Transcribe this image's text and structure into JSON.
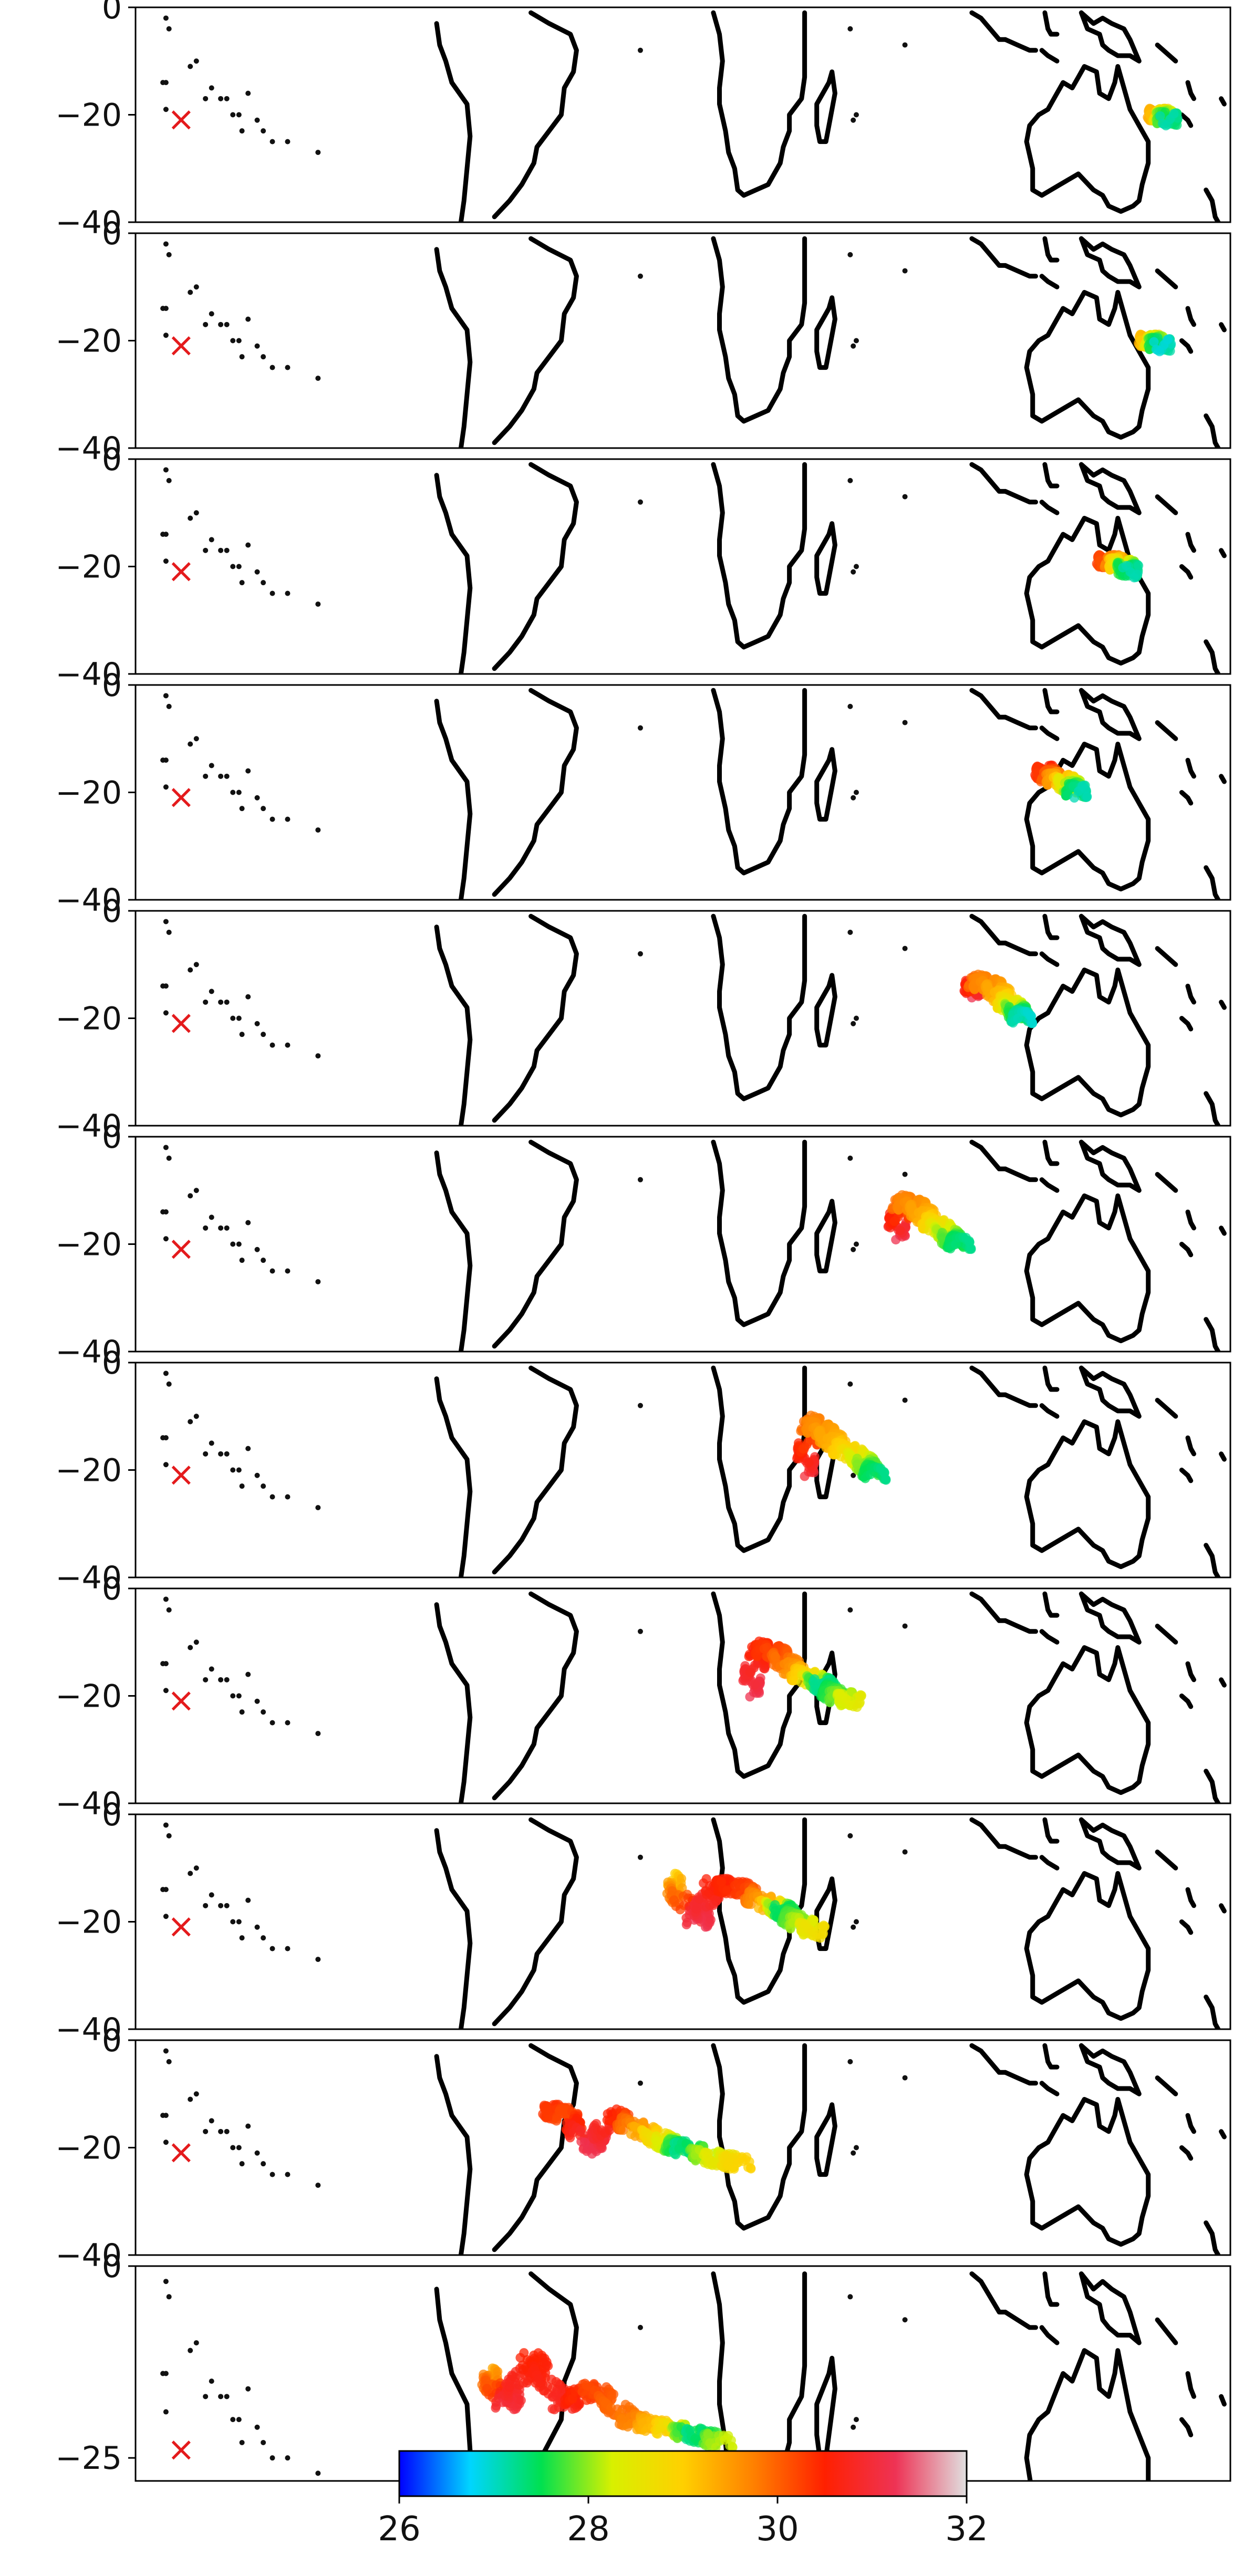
{
  "figure": {
    "description_free": true
  },
  "chart_data": {
    "type": "scatter",
    "grid": false,
    "legend": "none",
    "xlabel": "",
    "ylabel": "",
    "title": "",
    "panels": [
      {
        "ylim": [
          -40,
          0
        ],
        "yticks": [
          "0",
          "-20",
          "-40"
        ],
        "marker": {
          "label": "×",
          "lon": -165,
          "lat": -21
        },
        "plume": [
          [
            155,
            -20,
            29.8
          ],
          [
            158,
            -20,
            28.5
          ],
          [
            160,
            -21,
            27.0
          ]
        ]
      },
      {
        "ylim": [
          -40,
          0
        ],
        "yticks": [
          "0",
          "-20",
          "-40"
        ],
        "marker": {
          "label": "×",
          "lon": -165,
          "lat": -21
        },
        "plume": [
          [
            152,
            -20,
            29.8
          ],
          [
            155,
            -20,
            28.3
          ],
          [
            158,
            -21,
            26.8
          ]
        ]
      },
      {
        "ylim": [
          -40,
          0
        ],
        "yticks": [
          "0",
          "-20",
          "-40"
        ],
        "marker": {
          "label": "×",
          "lon": -165,
          "lat": -21
        },
        "plume": [
          [
            138,
            -19,
            30.6
          ],
          [
            142,
            -19,
            29.6
          ],
          [
            145,
            -20,
            28.2
          ],
          [
            147,
            -21,
            27.0
          ]
        ]
      },
      {
        "ylim": [
          -40,
          0
        ],
        "yticks": [
          "0",
          "-20",
          "-40"
        ],
        "marker": {
          "label": "×",
          "lon": -165,
          "lat": -21
        },
        "plume": [
          [
            118,
            -16,
            30.6
          ],
          [
            121,
            -17,
            30.0
          ],
          [
            125,
            -18,
            29.0
          ],
          [
            128,
            -19,
            28.0
          ],
          [
            130,
            -20,
            27.0
          ]
        ]
      },
      {
        "ylim": [
          -40,
          0
        ],
        "yticks": [
          "0",
          "-20",
          "-40"
        ],
        "marker": {
          "label": "×",
          "lon": -165,
          "lat": -21
        },
        "plume": [
          [
            95,
            -15,
            31.2
          ],
          [
            97,
            -13,
            29.8
          ],
          [
            101,
            -14,
            29.6
          ],
          [
            105,
            -16,
            29.2
          ],
          [
            108,
            -18,
            28.4
          ],
          [
            110,
            -19,
            27.6
          ],
          [
            112,
            -20,
            26.9
          ]
        ]
      },
      {
        "ylim": [
          -40,
          0
        ],
        "yticks": [
          "0",
          "-20",
          "-40"
        ],
        "marker": {
          "label": "×",
          "lon": -165,
          "lat": -21
        },
        "plume": [
          [
            70,
            -18,
            31.2
          ],
          [
            72,
            -12,
            29.8
          ],
          [
            76,
            -13,
            29.6
          ],
          [
            80,
            -15,
            29.3
          ],
          [
            84,
            -17,
            28.6
          ],
          [
            88,
            -19,
            27.8
          ],
          [
            92,
            -20,
            27.2
          ]
        ]
      },
      {
        "ylim": [
          -40,
          0
        ],
        "yticks": [
          "0",
          "-20",
          "-40"
        ],
        "marker": {
          "label": "×",
          "lon": -165,
          "lat": -21
        },
        "plume": [
          [
            40,
            -20,
            31.0
          ],
          [
            42,
            -11,
            29.8
          ],
          [
            46,
            -13,
            29.5
          ],
          [
            50,
            -15,
            29.3
          ],
          [
            55,
            -17,
            28.8
          ],
          [
            60,
            -19,
            28.0
          ],
          [
            64,
            -21,
            27.2
          ]
        ]
      },
      {
        "ylim": [
          -40,
          0
        ],
        "yticks": [
          "0",
          "-20",
          "-40"
        ],
        "marker": {
          "label": "×",
          "lon": -165,
          "lat": -21
        },
        "plume": [
          [
            22,
            -19,
            31.2
          ],
          [
            25,
            -11,
            30.5
          ],
          [
            30,
            -12,
            30.2
          ],
          [
            36,
            -15,
            29.6
          ],
          [
            42,
            -17,
            28.6
          ],
          [
            46,
            -18,
            27.2
          ],
          [
            51,
            -20,
            27.8
          ],
          [
            56,
            -21,
            28.5
          ]
        ]
      },
      {
        "ylim": [
          -40,
          0
        ],
        "yticks": [
          "0",
          "-20",
          "-40"
        ],
        "marker": {
          "label": "×",
          "lon": -165,
          "lat": -21
        },
        "plume": [
          [
            -5,
            -12,
            29.0
          ],
          [
            5,
            -20,
            31.2
          ],
          [
            10,
            -13,
            30.6
          ],
          [
            20,
            -14,
            30.3
          ],
          [
            28,
            -17,
            29.2
          ],
          [
            33,
            -18,
            27.4
          ],
          [
            38,
            -20,
            28.0
          ],
          [
            44,
            -22,
            28.8
          ]
        ]
      },
      {
        "ylim": [
          -40,
          0
        ],
        "yticks": [
          "0",
          "-20",
          "-40"
        ],
        "marker": {
          "label": "×",
          "lon": -165,
          "lat": -21
        },
        "plume": [
          [
            -45,
            -13,
            30.4
          ],
          [
            -38,
            -14,
            30.2
          ],
          [
            -30,
            -20,
            31.2
          ],
          [
            -22,
            -14,
            30.5
          ],
          [
            -14,
            -17,
            29.4
          ],
          [
            -6,
            -19,
            28.4
          ],
          [
            0,
            -20,
            27.2
          ],
          [
            10,
            -22,
            28.4
          ],
          [
            20,
            -23,
            29.0
          ]
        ]
      },
      {
        "ylim": [
          -28,
          0
        ],
        "yticks": [
          "0",
          "-25"
        ],
        "marker": {
          "label": "×",
          "lon": -165,
          "lat": -24
        },
        "plume": [
          [
            -65,
            -14,
            29.4
          ],
          [
            -58,
            -18,
            31.0
          ],
          [
            -50,
            -12,
            30.5
          ],
          [
            -40,
            -18,
            30.8
          ],
          [
            -30,
            -16,
            30.2
          ],
          [
            -18,
            -20,
            29.8
          ],
          [
            -6,
            -21,
            29.0
          ],
          [
            4,
            -22,
            27.2
          ],
          [
            14,
            -23,
            28.3
          ]
        ]
      }
    ],
    "xlim": [
      -180,
      180
    ],
    "colorbar": {
      "range": [
        26,
        32
      ],
      "ticks": [
        "26",
        "28",
        "30",
        "32"
      ],
      "colormap": [
        "#0000ff",
        "#00d5ff",
        "#00e050",
        "#d8f000",
        "#ffd000",
        "#ff8000",
        "#ff2000",
        "#ee3355",
        "#e0e0e0"
      ]
    }
  }
}
